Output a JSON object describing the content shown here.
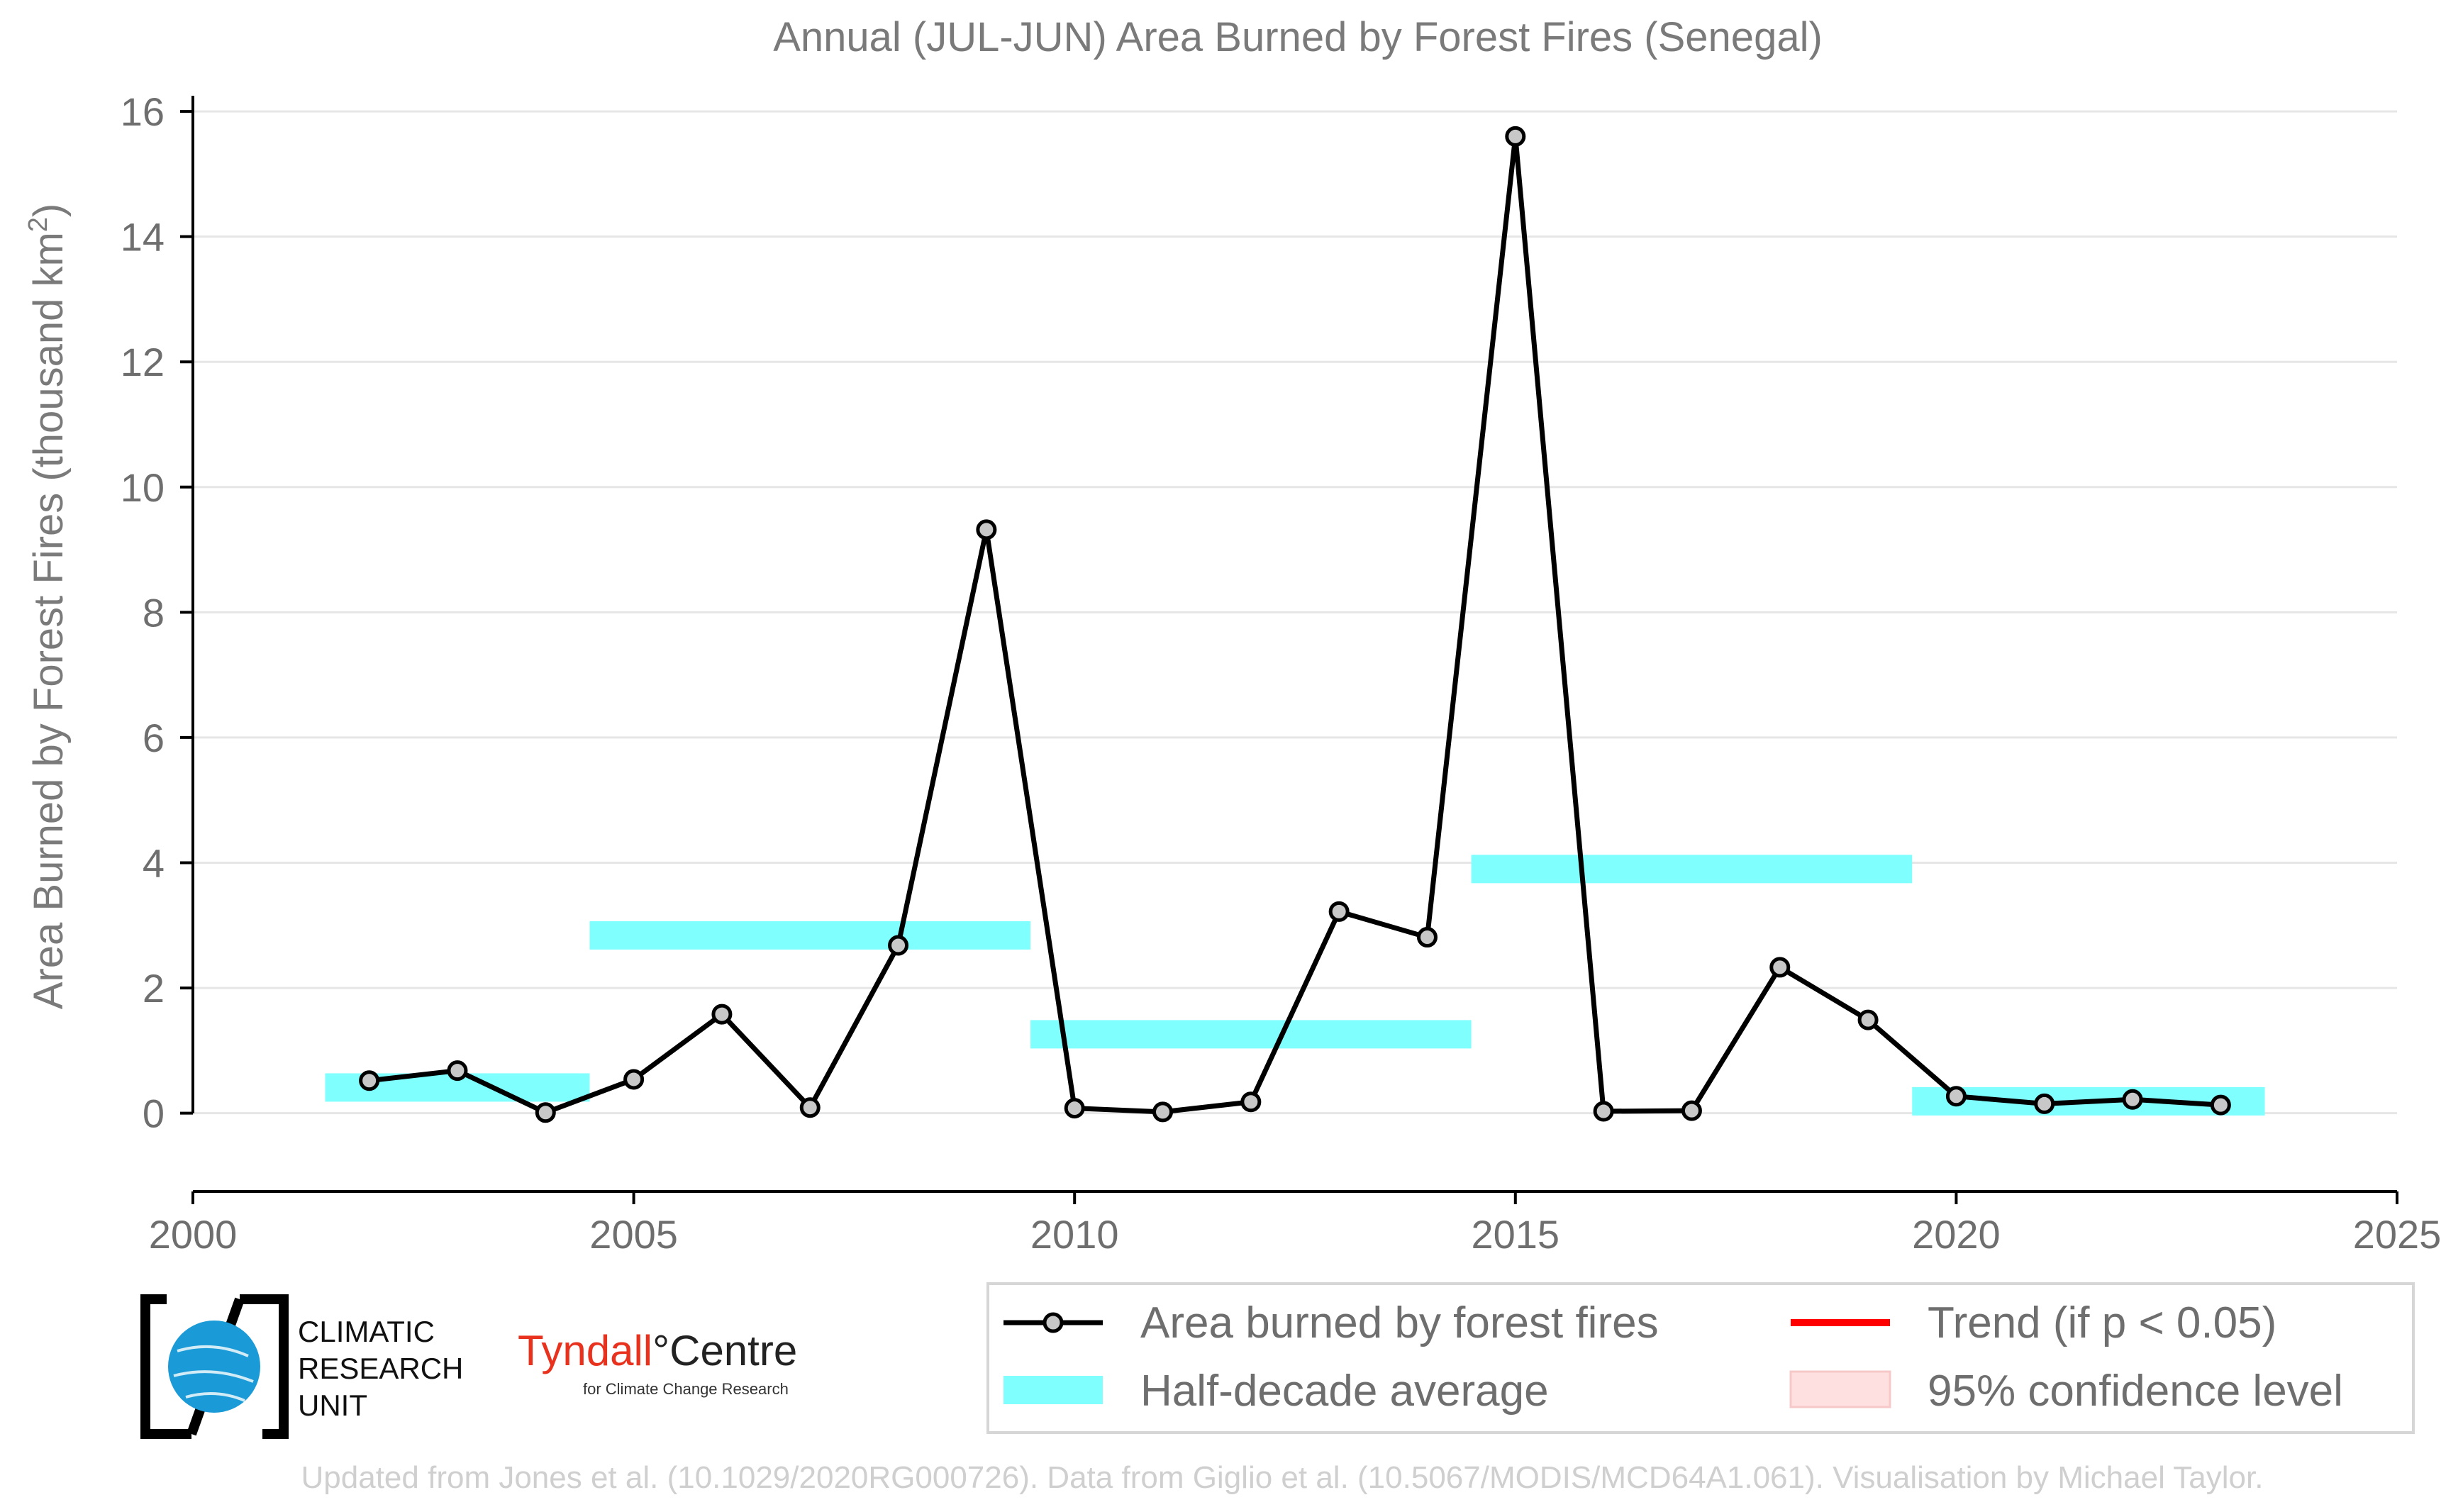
{
  "chart_data": {
    "type": "line",
    "title": "Annual (JUL-JUN) Area Burned by Forest Fires (Senegal)",
    "ylabel_main": "Area Burned by Forest Fires (thousand km",
    "ylabel_sup": "2",
    "ylabel_close": ")",
    "xlim": [
      2000,
      2025
    ],
    "ylim": [
      -1.25,
      16.25
    ],
    "xticks": [
      2000,
      2005,
      2010,
      2015,
      2020,
      2025
    ],
    "yticks": [
      0,
      2,
      4,
      6,
      8,
      10,
      12,
      14,
      16
    ],
    "grid": "horizontal",
    "series": [
      {
        "name": "Area burned by forest fires",
        "color": "#000000",
        "marker_fill": "#c8c8c8",
        "x": [
          2002,
          2003,
          2004,
          2005,
          2006,
          2007,
          2008,
          2009,
          2010,
          2011,
          2012,
          2013,
          2014,
          2015,
          2016,
          2017,
          2018,
          2019,
          2020,
          2021,
          2022,
          2023
        ],
        "y": [
          0.52,
          0.68,
          0.01,
          0.54,
          1.58,
          0.09,
          2.68,
          9.32,
          0.08,
          0.02,
          0.18,
          3.22,
          2.81,
          15.6,
          0.03,
          0.04,
          2.33,
          1.49,
          0.27,
          0.15,
          0.22,
          0.13
        ]
      }
    ],
    "half_decade_average": {
      "name": "Half-decade average",
      "color": "#80ffff",
      "segments": [
        {
          "x0": 2001.5,
          "x1": 2004.5,
          "y": 0.41
        },
        {
          "x0": 2004.5,
          "x1": 2009.5,
          "y": 2.84
        },
        {
          "x0": 2009.5,
          "x1": 2014.5,
          "y": 1.26
        },
        {
          "x0": 2014.5,
          "x1": 2019.5,
          "y": 3.9
        },
        {
          "x0": 2019.5,
          "x1": 2023.5,
          "y": 0.19
        }
      ]
    },
    "legend": {
      "placement": "bottom-right",
      "items": [
        {
          "label": "Area burned by forest fires",
          "kind": "line-marker",
          "color": "#000000"
        },
        {
          "label": "Trend (if p < 0.05)",
          "kind": "line",
          "color": "#ff0000"
        },
        {
          "label": "Half-decade average",
          "kind": "band",
          "color": "#80ffff"
        },
        {
          "label": "95% confidence level",
          "kind": "patch",
          "color": "#ffe0e0"
        }
      ]
    }
  },
  "logos": {
    "cru_line1": "CLIMATIC",
    "cru_line2": "RESEARCH",
    "cru_line3": "UNIT",
    "tyndall_name": "Tyndall",
    "tyndall_degree": "°",
    "tyndall_centre": "Centre",
    "tyndall_sub": "for Climate Change Research",
    "tyndall_color": "#e8321e",
    "cru_color": "#1a9ad6"
  },
  "credit": "Updated from Jones et al. (10.1029/2020RG000726). Data from Giglio et al. (10.5067/MODIS/MCD64A1.061). Visualisation by Michael Taylor."
}
